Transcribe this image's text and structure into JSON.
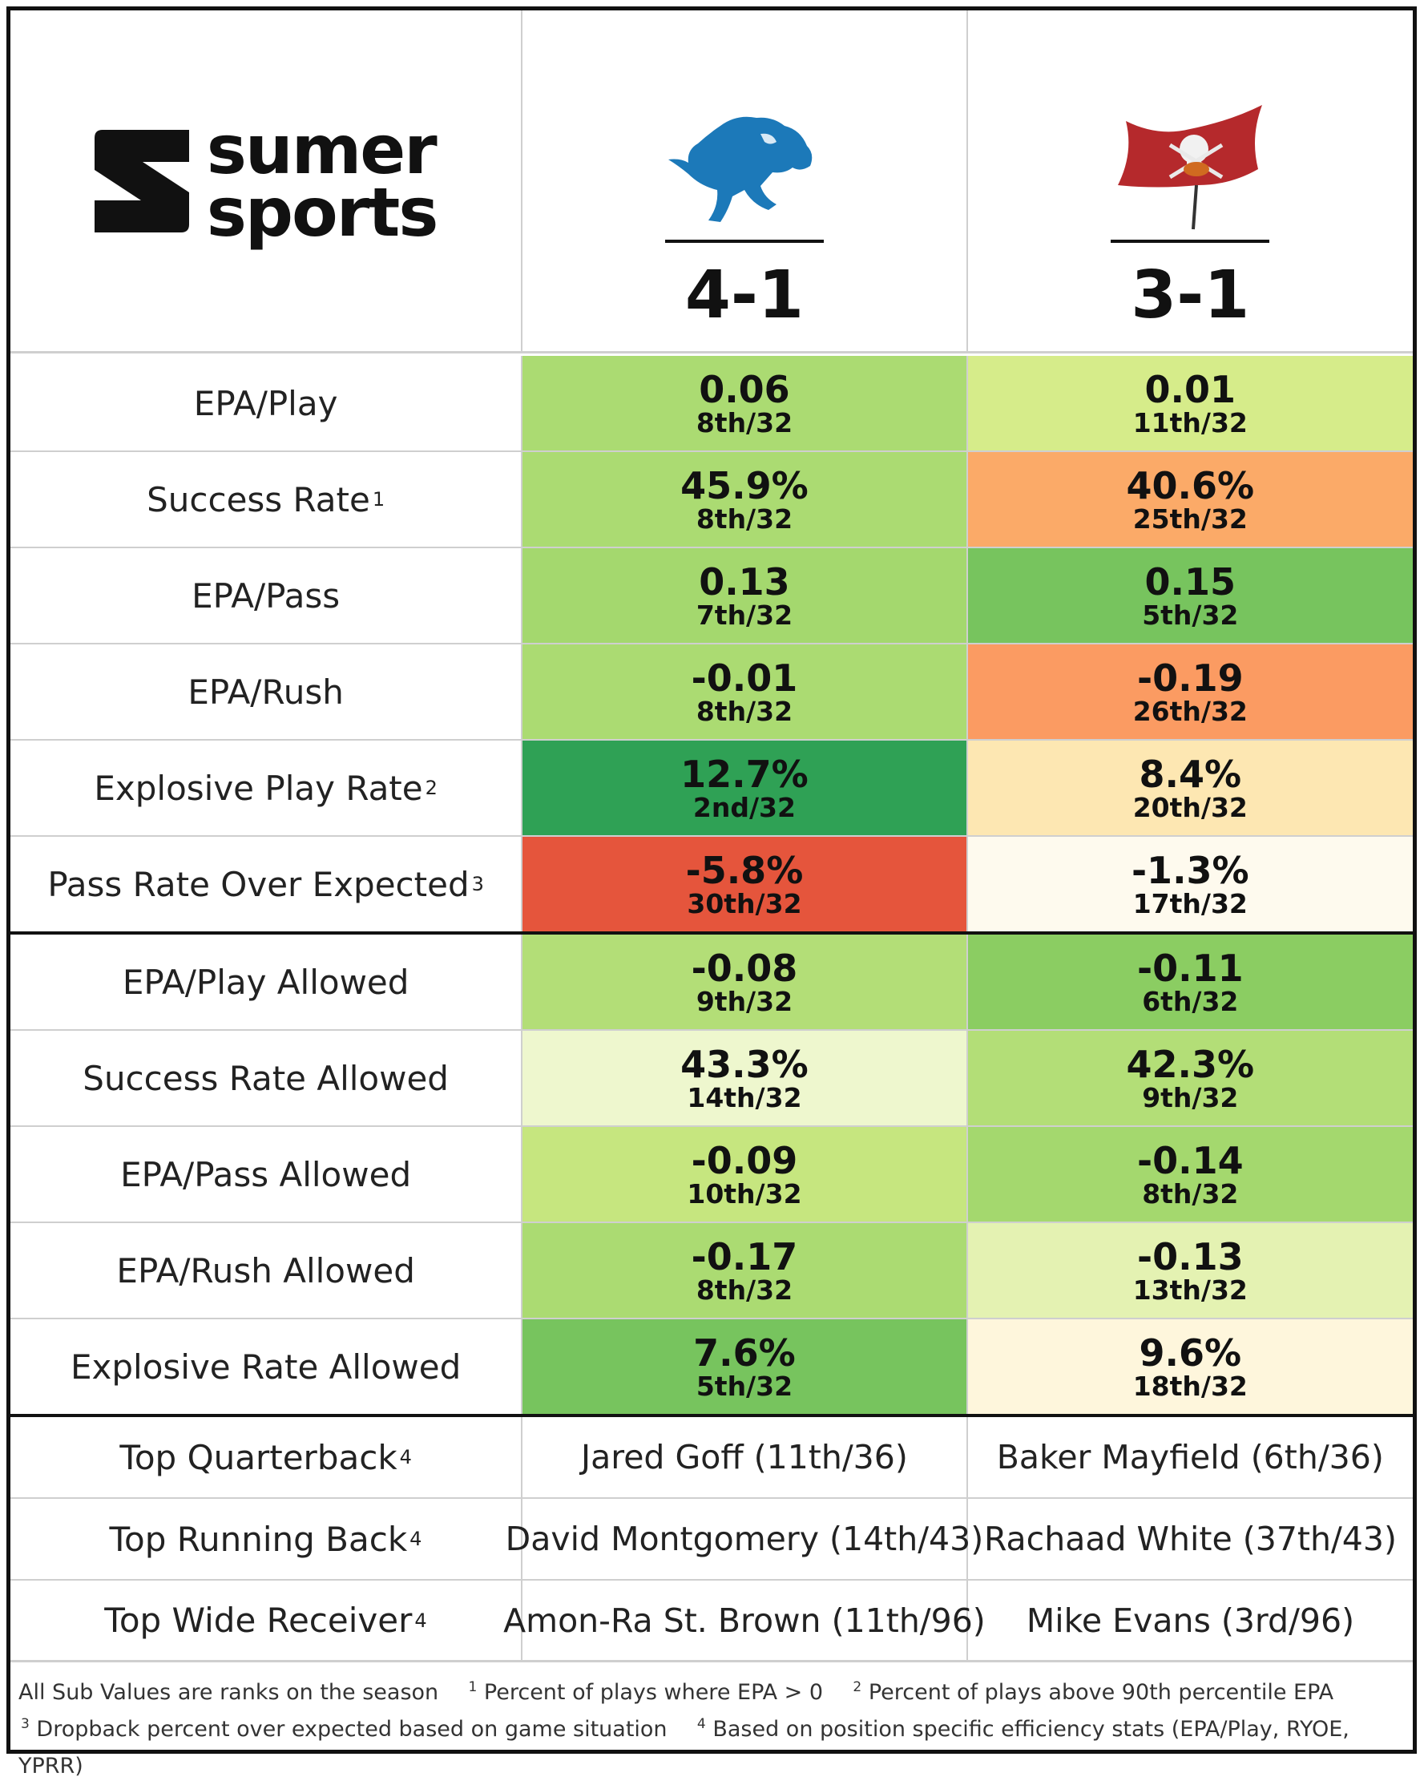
{
  "brand": {
    "line1": "sumer",
    "line2": "sports"
  },
  "teams": [
    {
      "record": "4-1",
      "logo_icon": "lion-icon",
      "logo_color": "#1C79B9"
    },
    {
      "record": "3-1",
      "logo_icon": "pirate-flag-icon",
      "logo_color": "#B5292C"
    }
  ],
  "offense": [
    {
      "label": "EPA/Play",
      "sup": "",
      "team1": {
        "value": "0.06",
        "rank": "8th/32",
        "color": "#ABDB72"
      },
      "team2": {
        "value": "0.01",
        "rank": "11th/32",
        "color": "#D6EC8A"
      }
    },
    {
      "label": "Success Rate",
      "sup": "1",
      "team1": {
        "value": "45.9%",
        "rank": "8th/32",
        "color": "#ABDB72"
      },
      "team2": {
        "value": "40.6%",
        "rank": "25th/32",
        "color": "#FBAA68"
      }
    },
    {
      "label": "EPA/Pass",
      "sup": "",
      "team1": {
        "value": "0.13",
        "rank": "7th/32",
        "color": "#A4D86E"
      },
      "team2": {
        "value": "0.15",
        "rank": "5th/32",
        "color": "#77C45E"
      }
    },
    {
      "label": "EPA/Rush",
      "sup": "",
      "team1": {
        "value": "-0.01",
        "rank": "8th/32",
        "color": "#ABDB72"
      },
      "team2": {
        "value": "-0.19",
        "rank": "26th/32",
        "color": "#FB9B62"
      }
    },
    {
      "label": "Explosive Play Rate",
      "sup": "2",
      "team1": {
        "value": "12.7%",
        "rank": "2nd/32",
        "color": "#2FA155"
      },
      "team2": {
        "value": "8.4%",
        "rank": "20th/32",
        "color": "#FDE7B2"
      }
    },
    {
      "label": "Pass Rate Over Expected",
      "sup": "3",
      "team1": {
        "value": "-5.8%",
        "rank": "30th/32",
        "color": "#E5553C"
      },
      "team2": {
        "value": "-1.3%",
        "rank": "17th/32",
        "color": "#FEFAEE"
      }
    }
  ],
  "defense": [
    {
      "label": "EPA/Play Allowed",
      "sup": "",
      "team1": {
        "value": "-0.08",
        "rank": "9th/32",
        "color": "#B3DE77"
      },
      "team2": {
        "value": "-0.11",
        "rank": "6th/32",
        "color": "#8BCD62"
      }
    },
    {
      "label": "Success Rate Allowed",
      "sup": "",
      "team1": {
        "value": "43.3%",
        "rank": "14th/32",
        "color": "#EEF7CE"
      },
      "team2": {
        "value": "42.3%",
        "rank": "9th/32",
        "color": "#B3DE77"
      }
    },
    {
      "label": "EPA/Pass Allowed",
      "sup": "",
      "team1": {
        "value": "-0.09",
        "rank": "10th/32",
        "color": "#C6E67F"
      },
      "team2": {
        "value": "-0.14",
        "rank": "8th/32",
        "color": "#A4D86E"
      }
    },
    {
      "label": "EPA/Rush Allowed",
      "sup": "",
      "team1": {
        "value": "-0.17",
        "rank": "8th/32",
        "color": "#ABDB72"
      },
      "team2": {
        "value": "-0.13",
        "rank": "13th/32",
        "color": "#E4F2B2"
      }
    },
    {
      "label": "Explosive Rate Allowed",
      "sup": "",
      "team1": {
        "value": "7.6%",
        "rank": "5th/32",
        "color": "#77C45E"
      },
      "team2": {
        "value": "9.6%",
        "rank": "18th/32",
        "color": "#FEF6DC"
      }
    }
  ],
  "players": [
    {
      "label": "Top Quarterback",
      "sup": "4",
      "team1": "Jared Goff (11th/36)",
      "team2": "Baker Mayfield (6th/36)"
    },
    {
      "label": "Top Running Back",
      "sup": "4",
      "team1": "David Montgomery (14th/43)",
      "team2": "Rachaad White (37th/43)"
    },
    {
      "label": "Top Wide Receiver",
      "sup": "4",
      "team1": "Amon-Ra St. Brown (11th/96)",
      "team2": "Mike Evans (3rd/96)"
    }
  ],
  "footnotes": {
    "intro": "All Sub Values are ranks on the season",
    "n1_mark": "1",
    "n1": "Percent of plays where EPA > 0",
    "n2_mark": "2",
    "n2": "Percent of plays above 90th percentile EPA",
    "n3_mark": "3",
    "n3": "Dropback percent over expected based on game situation",
    "n4_mark": "4",
    "n4": "Based on position specific efficiency stats (EPA/Play, RYOE, YPRR)"
  }
}
